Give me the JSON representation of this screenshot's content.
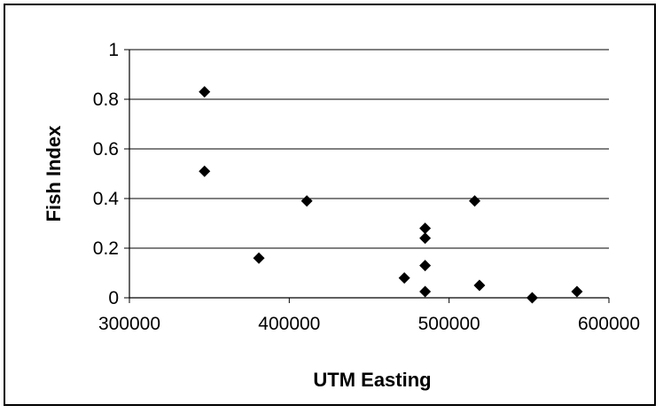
{
  "chart_data": {
    "type": "scatter",
    "title": "",
    "xlabel": "UTM Easting",
    "ylabel": "Fish Index",
    "xlim": [
      300000,
      600000
    ],
    "ylim": [
      0,
      1
    ],
    "x_ticks": [
      300000,
      400000,
      500000,
      600000
    ],
    "y_ticks": [
      0,
      0.2,
      0.4,
      0.6,
      0.8,
      1
    ],
    "x_tick_labels": [
      "300000",
      "400000",
      "500000",
      "600000"
    ],
    "y_tick_labels": [
      "0",
      "0.2",
      "0.4",
      "0.6",
      "0.8",
      "1"
    ],
    "grid": "horizontal",
    "legend": "none",
    "marker": "diamond",
    "marker_color": "#000000",
    "points": [
      {
        "x": 347000,
        "y": 0.83
      },
      {
        "x": 347000,
        "y": 0.51
      },
      {
        "x": 381000,
        "y": 0.16
      },
      {
        "x": 411000,
        "y": 0.39
      },
      {
        "x": 472000,
        "y": 0.08
      },
      {
        "x": 485000,
        "y": 0.28
      },
      {
        "x": 485000,
        "y": 0.24
      },
      {
        "x": 485000,
        "y": 0.13
      },
      {
        "x": 485000,
        "y": 0.025
      },
      {
        "x": 516000,
        "y": 0.39
      },
      {
        "x": 519000,
        "y": 0.05
      },
      {
        "x": 552000,
        "y": 0.0
      },
      {
        "x": 580000,
        "y": 0.025
      }
    ]
  }
}
